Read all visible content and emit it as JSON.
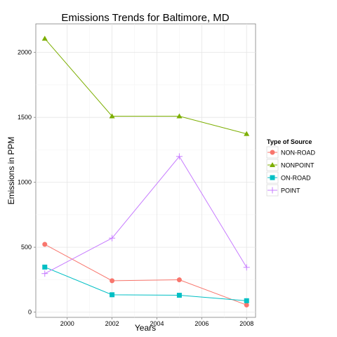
{
  "chart_data": {
    "type": "line",
    "title": "Emissions Trends for Baltimore, MD",
    "xlabel": "Years",
    "ylabel": "Emissions in PPM",
    "x": [
      1999,
      2002,
      2005,
      2008
    ],
    "xlim": [
      1998.6,
      2008.4
    ],
    "ylim": [
      -40,
      2220
    ],
    "xticks": [
      2000,
      2002,
      2004,
      2006,
      2008
    ],
    "yticks": [
      0,
      500,
      1000,
      1500,
      2000
    ],
    "grid": true,
    "legend_title": "Type of Source",
    "legend_position": "right",
    "series": [
      {
        "name": "NON-ROAD",
        "color": "#F8766D",
        "marker": "circle",
        "values": [
          522,
          242,
          249,
          55
        ]
      },
      {
        "name": "NONPOINT",
        "color": "#7CAE00",
        "marker": "triangle",
        "values": [
          2107,
          1509,
          1509,
          1373
        ]
      },
      {
        "name": "ON-ROAD",
        "color": "#00BFC4",
        "marker": "square",
        "values": [
          347,
          134,
          130,
          88
        ]
      },
      {
        "name": "POINT",
        "color": "#C77CFF",
        "marker": "plus",
        "values": [
          297,
          570,
          1199,
          345
        ]
      }
    ]
  }
}
